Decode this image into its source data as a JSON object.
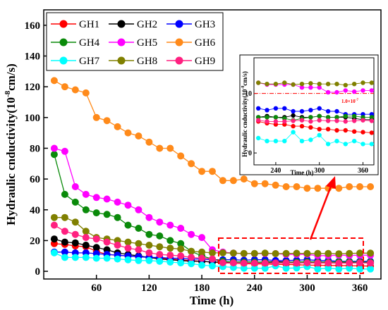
{
  "chart_data": {
    "type": "line",
    "xlabel": "Time (h)",
    "ylabel_main": "Hydraulic cnductivity(10",
    "ylabel_exp": "-8",
    "ylabel_unit": "cm/s)",
    "xlim": [
      0,
      384
    ],
    "ylim": [
      -5,
      170
    ],
    "x_ticks": [
      60,
      120,
      180,
      240,
      300,
      360
    ],
    "y_ticks": [
      0,
      20,
      40,
      60,
      80,
      100,
      120,
      140,
      160
    ],
    "legend_placement": "top-left",
    "colors": {
      "GH1": "#ff0000",
      "GH2": "#000000",
      "GH3": "#0000ff",
      "GH4": "#0a8a0a",
      "GH5": "#ff00ff",
      "GH6": "#ff8a1a",
      "GH7": "#00ffff",
      "GH8": "#808000",
      "GH9": "#ff2080"
    },
    "series": [
      {
        "name": "GH1",
        "x": [
          12,
          24,
          36,
          48,
          60,
          72,
          84,
          96,
          108,
          120,
          132,
          144,
          156,
          168,
          180,
          192,
          204,
          216,
          228,
          240,
          252,
          264,
          276,
          288,
          300,
          312,
          324,
          336,
          348,
          360,
          372
        ],
        "values": [
          18,
          17.5,
          16.5,
          16,
          13,
          11,
          10.5,
          10,
          9.5,
          9,
          8.5,
          8,
          7.5,
          7,
          6.5,
          6,
          5.5,
          5.3,
          5,
          4.8,
          4.8,
          4.5,
          4.5,
          4.3,
          4,
          4,
          3.8,
          3.8,
          3.6,
          3.5,
          3.4
        ]
      },
      {
        "name": "GH2",
        "x": [
          12,
          24,
          36,
          48,
          60,
          72,
          84,
          96,
          108,
          120,
          132,
          144,
          156,
          168,
          180,
          192,
          204,
          216,
          228,
          240,
          252,
          264,
          276,
          288,
          300,
          312,
          324,
          336,
          348,
          360,
          372
        ],
        "values": [
          21,
          19,
          18.5,
          17,
          15.5,
          14,
          12,
          11,
          10,
          9,
          8,
          7.5,
          7,
          6.5,
          6.5,
          6,
          6,
          6,
          6.2,
          6,
          6,
          6.3,
          6,
          6,
          6.2,
          6,
          6,
          6,
          5.8,
          5.6,
          5.6
        ]
      },
      {
        "name": "GH3",
        "x": [
          12,
          24,
          36,
          48,
          60,
          72,
          84,
          96,
          108,
          120,
          132,
          144,
          156,
          168,
          180,
          192,
          204,
          216,
          228,
          240,
          252,
          264,
          276,
          288,
          300,
          312,
          324,
          336,
          348,
          360,
          372
        ],
        "values": [
          12.5,
          12.5,
          12,
          12,
          11.5,
          11,
          10.5,
          10,
          9.5,
          9,
          9,
          8.5,
          8.5,
          8,
          8,
          7.5,
          7.5,
          7.5,
          7.2,
          7.5,
          7.5,
          7,
          7,
          7.2,
          7.5,
          7,
          7,
          6.5,
          6.5,
          6.5,
          6.5
        ]
      },
      {
        "name": "GH4",
        "x": [
          12,
          24,
          36,
          48,
          60,
          72,
          84,
          96,
          108,
          120,
          132,
          144,
          156,
          168,
          180,
          192,
          204,
          216,
          228,
          240,
          252,
          264,
          276,
          288,
          300,
          312,
          324,
          336,
          348,
          360,
          372
        ],
        "values": [
          76,
          50,
          45,
          40,
          38,
          37,
          35,
          30,
          28,
          24,
          23,
          20,
          18,
          13,
          10,
          8,
          6.5,
          6,
          6,
          6,
          5.8,
          5.5,
          5.8,
          6,
          6.2,
          6,
          6,
          6.2,
          6.2,
          6,
          6
        ]
      },
      {
        "name": "GH5",
        "x": [
          12,
          24,
          36,
          48,
          60,
          72,
          84,
          96,
          108,
          120,
          132,
          144,
          156,
          168,
          180,
          192,
          204,
          216,
          228,
          240,
          252,
          264,
          276,
          288,
          300,
          312,
          324,
          336,
          348,
          360,
          372
        ],
        "values": [
          80,
          78,
          55,
          50,
          48,
          47,
          45,
          43,
          40,
          35,
          32,
          30,
          28,
          24,
          22,
          14,
          12.5,
          11.8,
          11.5,
          11.5,
          11.5,
          11.5,
          11,
          11,
          11,
          10.2,
          10.2,
          10.5,
          10.3,
          10.5,
          10.5
        ]
      },
      {
        "name": "GH6",
        "x": [
          12,
          24,
          36,
          48,
          60,
          72,
          84,
          96,
          108,
          120,
          132,
          144,
          156,
          168,
          180,
          192,
          204,
          216,
          228,
          240,
          252,
          264,
          276,
          288,
          300,
          312,
          324,
          336,
          348,
          360,
          372
        ],
        "values": [
          124,
          120,
          118,
          116,
          100,
          98,
          94,
          90,
          88,
          84,
          80,
          80,
          75,
          70,
          65,
          65,
          59,
          59,
          60,
          57,
          57,
          56,
          55,
          55,
          54,
          54,
          54,
          54,
          55,
          55,
          55
        ]
      },
      {
        "name": "GH7",
        "x": [
          12,
          24,
          36,
          48,
          60,
          72,
          84,
          96,
          108,
          120,
          132,
          144,
          156,
          168,
          180,
          192,
          204,
          216,
          228,
          240,
          252,
          264,
          276,
          288,
          300,
          312,
          324,
          336,
          348,
          360,
          372
        ],
        "values": [
          12,
          9,
          9,
          9,
          8.5,
          8.5,
          8,
          7.5,
          7,
          7,
          6.5,
          6,
          5.5,
          5,
          4,
          3.5,
          3,
          2.5,
          2,
          2,
          2,
          3.5,
          2,
          2.2,
          3,
          1.5,
          2,
          1.5,
          2,
          1.5,
          1.5
        ]
      },
      {
        "name": "GH8",
        "x": [
          12,
          24,
          36,
          48,
          60,
          72,
          84,
          96,
          108,
          120,
          132,
          144,
          156,
          168,
          180,
          192,
          204,
          216,
          228,
          240,
          252,
          264,
          276,
          288,
          300,
          312,
          324,
          336,
          348,
          360,
          372
        ],
        "values": [
          35,
          35,
          32,
          26,
          22,
          21,
          20,
          19,
          18,
          17,
          16,
          15,
          14.5,
          13,
          12.5,
          12,
          12,
          11.8,
          11.6,
          11.6,
          11.8,
          11.5,
          11.6,
          11.7,
          11.6,
          11.6,
          11.6,
          11.4,
          11.6,
          11.8,
          11.8
        ]
      },
      {
        "name": "GH9",
        "x": [
          12,
          24,
          36,
          48,
          60,
          72,
          84,
          96,
          108,
          120,
          132,
          144,
          156,
          168,
          180,
          192,
          204,
          216,
          228,
          240,
          252,
          264,
          276,
          288,
          300,
          312,
          324,
          336,
          348,
          360,
          372
        ],
        "values": [
          30,
          26,
          24,
          22,
          21,
          19,
          17,
          15,
          14,
          12,
          11,
          10.5,
          10,
          9,
          8.5,
          8,
          5.6,
          5.5,
          5.3,
          5.3,
          5.3,
          5.4,
          5.5,
          5.3,
          5.5,
          5.4,
          5.4,
          5.3,
          5.4,
          5.5,
          5.4
        ]
      }
    ],
    "inset": {
      "xlabel": "Time (h)",
      "ylabel_main": "Hydraulic cnductivity(10",
      "ylabel_exp": "-8",
      "ylabel_unit": "cm/s)",
      "xlim": [
        210,
        375
      ],
      "ylim": [
        -2,
        16
      ],
      "x_ticks": [
        240,
        300,
        360
      ],
      "y_ticks": [
        0,
        10
      ],
      "ref_value": 10,
      "ref_label": "1.0×10",
      "ref_exp": "-7"
    }
  }
}
